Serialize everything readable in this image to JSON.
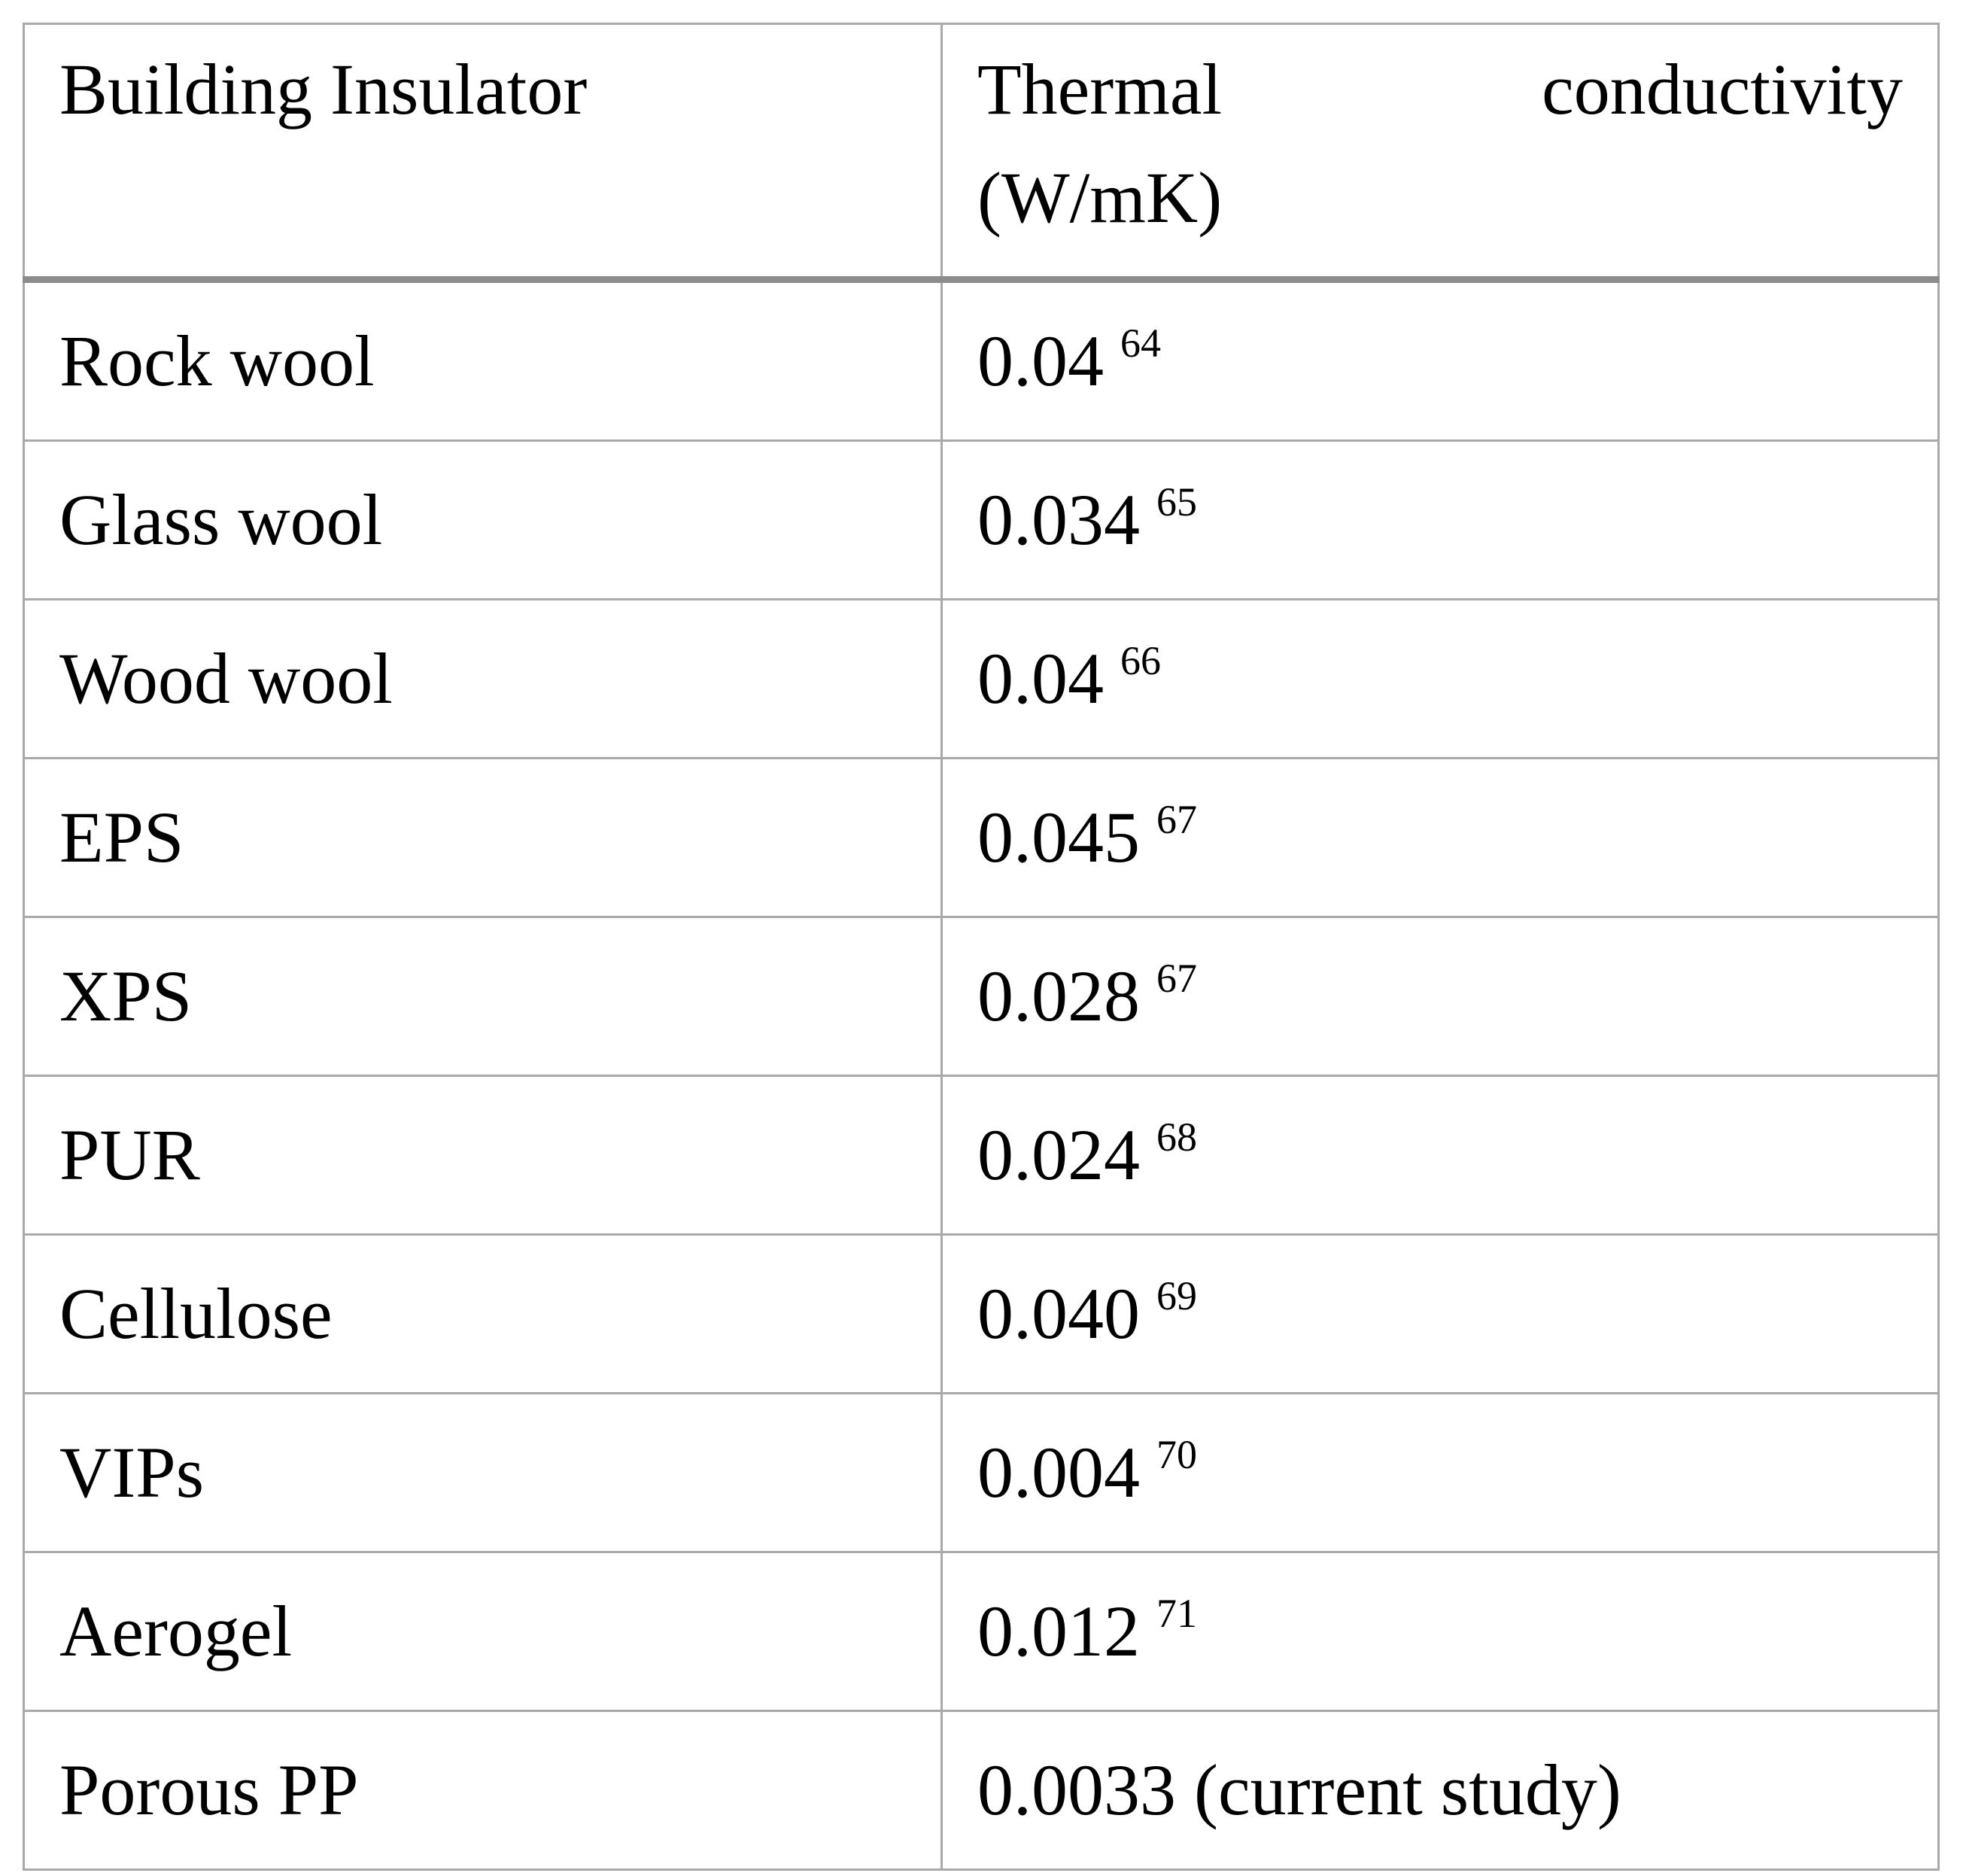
{
  "table": {
    "header": [
      "Building Insulator",
      "Thermal conductivity (W/mK)"
    ],
    "rows": [
      {
        "name": "Rock wool",
        "value": "0.04",
        "ref": "64"
      },
      {
        "name": "Glass wool",
        "value": "0.034",
        "ref": "65"
      },
      {
        "name": "Wood wool",
        "value": "0.04",
        "ref": "66"
      },
      {
        "name": "EPS",
        "value": "0.045",
        "ref": "67"
      },
      {
        "name": "XPS",
        "value": "0.028",
        "ref": "67"
      },
      {
        "name": "PUR",
        "value": "0.024",
        "ref": "68"
      },
      {
        "name": "Cellulose",
        "value": "0.040",
        "ref": "69"
      },
      {
        "name": "VIPs",
        "value": "0.004",
        "ref": "70"
      },
      {
        "name": "Aerogel",
        "value": "0.012",
        "ref": "71"
      },
      {
        "name": "Porous PP",
        "value": "0.0033 (current study)"
      }
    ]
  }
}
